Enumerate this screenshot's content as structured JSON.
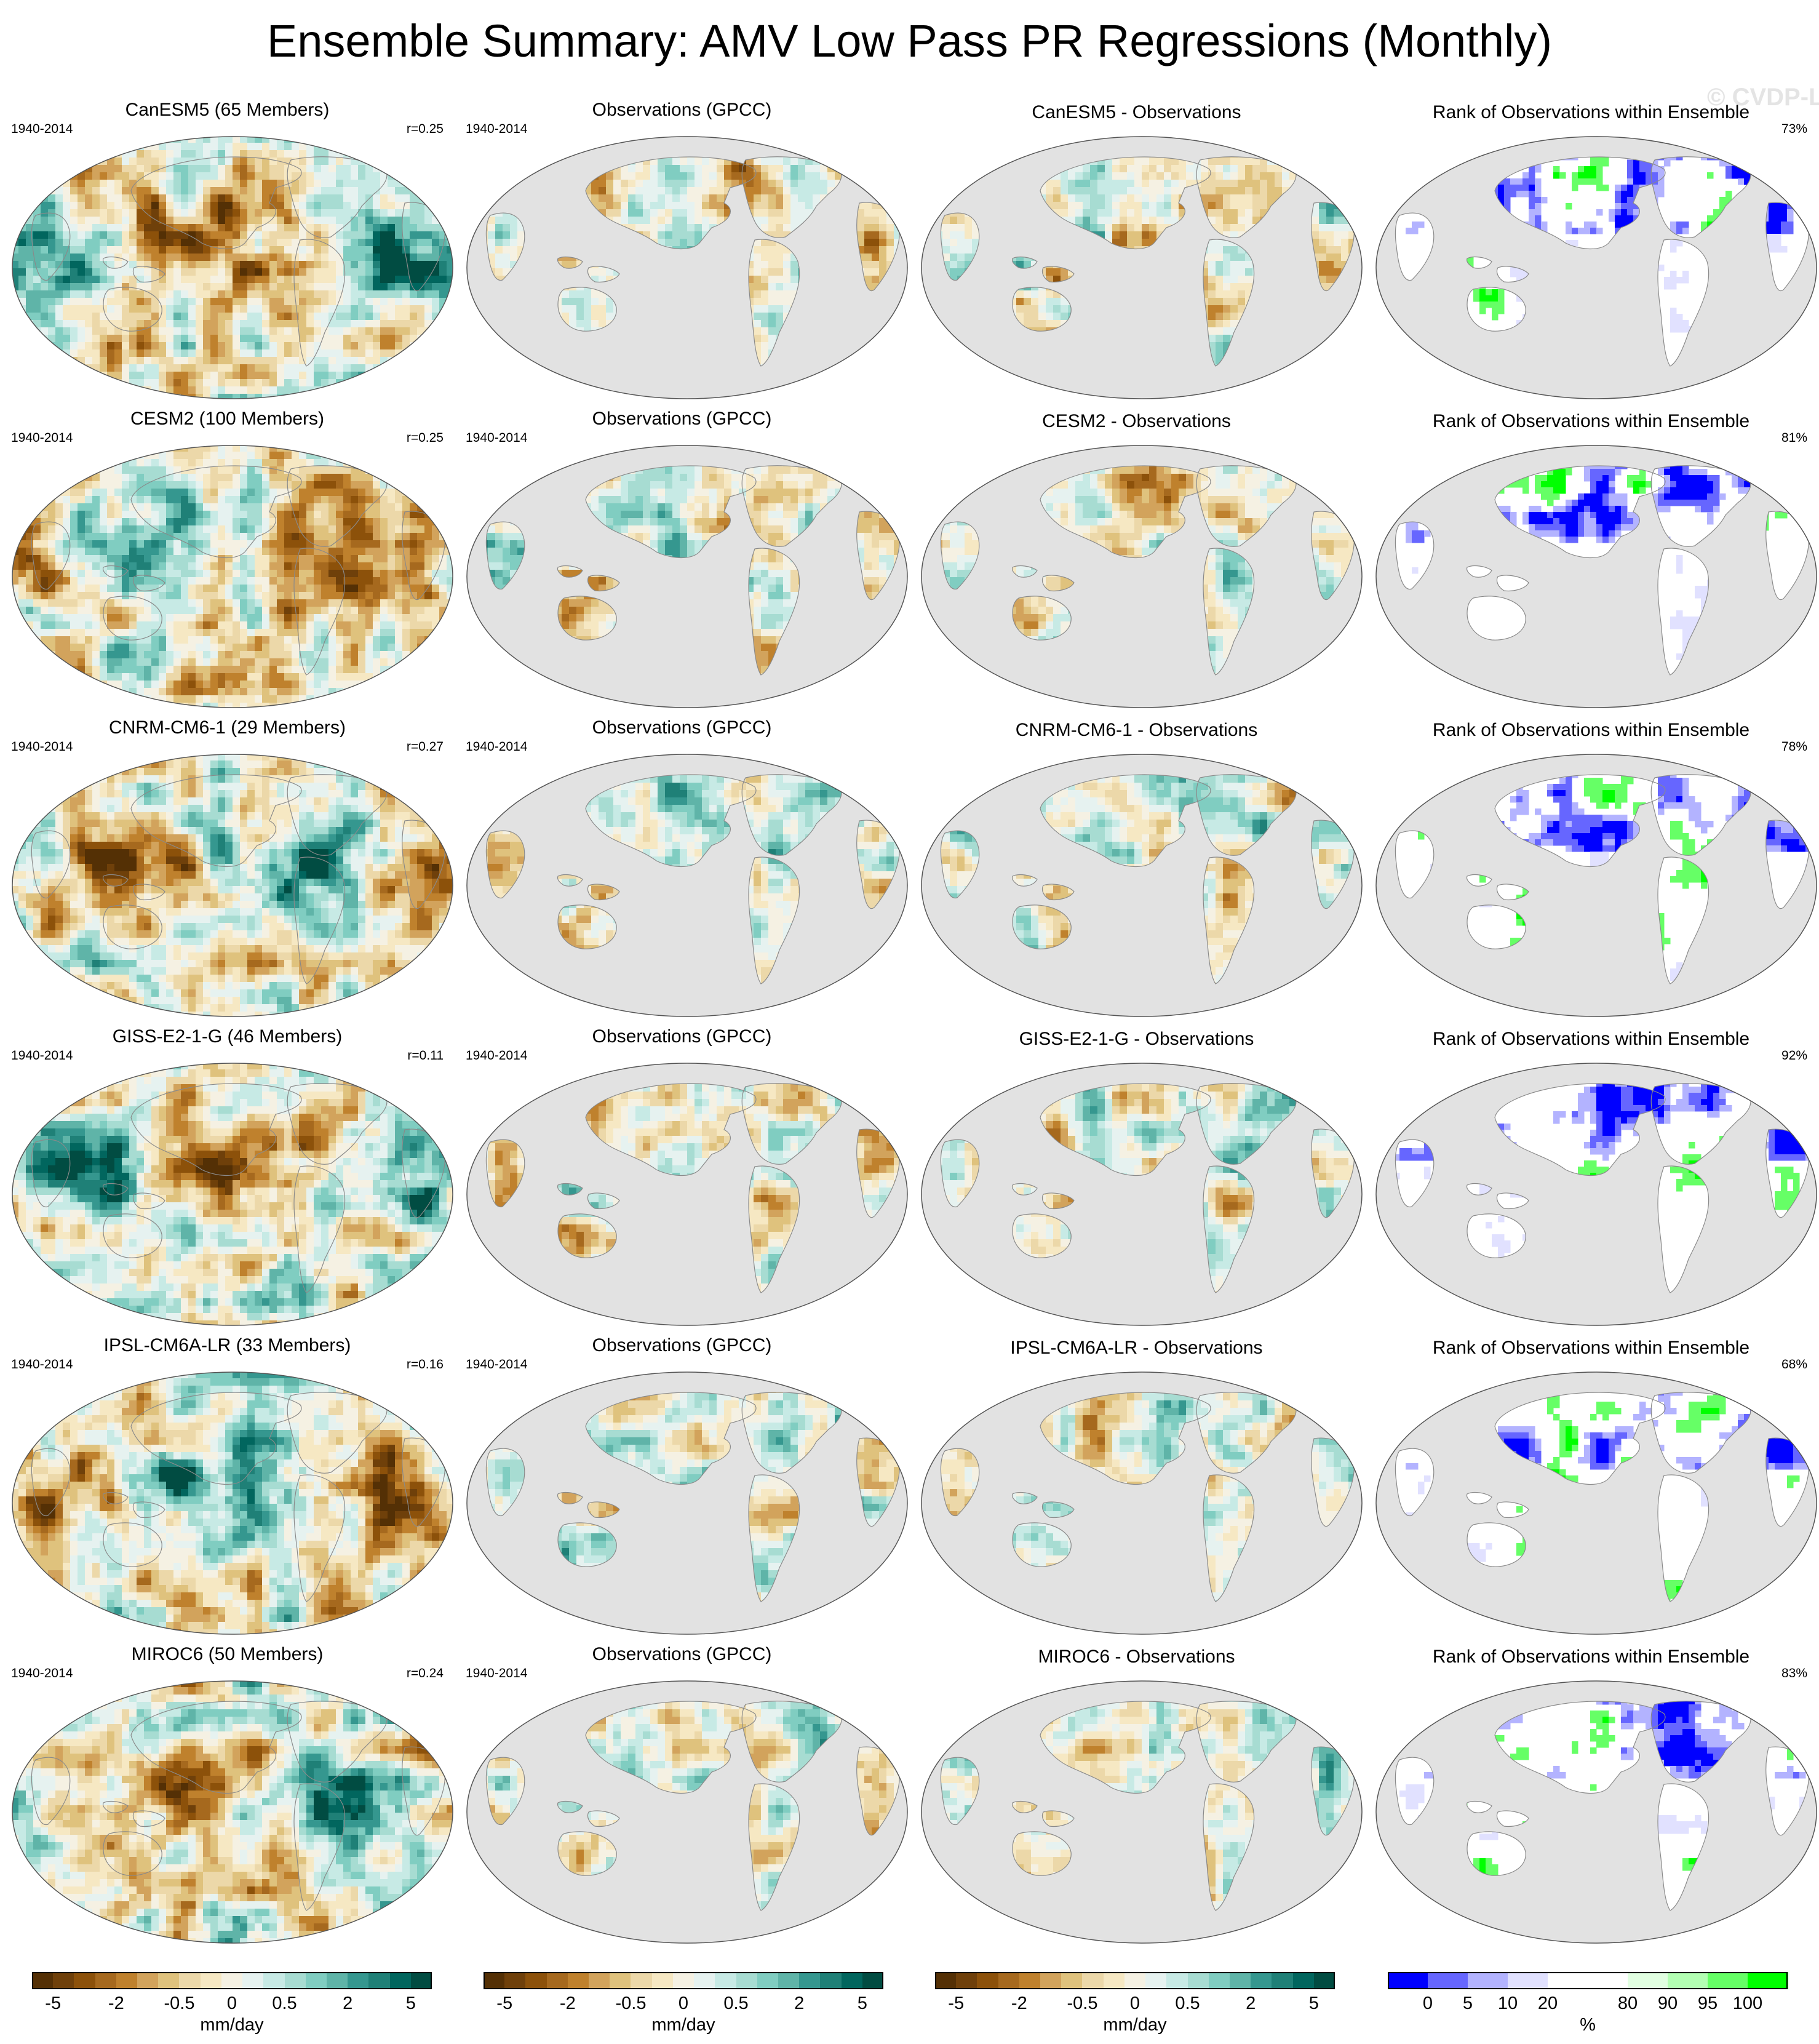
{
  "title": "Ensemble Summary: AMV Low Pass PR Regressions (Monthly)",
  "watermark": "© CVDP-LE",
  "period": "1940-2014",
  "obs_title": "Observations (GPCC)",
  "rank_title": "Rank of Observations within Ensemble",
  "rows": [
    {
      "model_title": "CanESM5 (65 Members)",
      "r": "r=0.25",
      "diff_title": "CanESM5 - Observations",
      "rank_pct": "73%"
    },
    {
      "model_title": "CESM2 (100 Members)",
      "r": "r=0.25",
      "diff_title": "CESM2 - Observations",
      "rank_pct": "81%"
    },
    {
      "model_title": "CNRM-CM6-1 (29 Members)",
      "r": "r=0.27",
      "diff_title": "CNRM-CM6-1 - Observations",
      "rank_pct": "78%"
    },
    {
      "model_title": "GISS-E2-1-G (46 Members)",
      "r": "r=0.11",
      "diff_title": "GISS-E2-1-G - Observations",
      "rank_pct": "92%"
    },
    {
      "model_title": "IPSL-CM6A-LR (33 Members)",
      "r": "r=0.16",
      "diff_title": "IPSL-CM6A-LR - Observations",
      "rank_pct": "68%"
    },
    {
      "model_title": "MIROC6 (50 Members)",
      "r": "r=0.24",
      "diff_title": "MIROC6 - Observations",
      "rank_pct": "83%"
    }
  ],
  "chart_data": {
    "type": "heatmap",
    "colorbars": [
      {
        "unit": "mm/day",
        "tick_labels": [
          "-5",
          "-2",
          "-0.5",
          "0",
          "0.5",
          "2",
          "5"
        ],
        "colors": [
          "#543005",
          "#6f400a",
          "#8c510a",
          "#a6691e",
          "#bf812d",
          "#d2a35c",
          "#dfc27d",
          "#ecd8a9",
          "#f6e8c3",
          "#f5f1e3",
          "#e6f2f0",
          "#c7eae5",
          "#a7dcd2",
          "#80cdc1",
          "#5fb4a8",
          "#35978f",
          "#1f8077",
          "#01665e",
          "#014c42"
        ]
      },
      {
        "unit": "mm/day",
        "tick_labels": [
          "-5",
          "-2",
          "-0.5",
          "0",
          "0.5",
          "2",
          "5"
        ],
        "colors": [
          "#543005",
          "#6f400a",
          "#8c510a",
          "#a6691e",
          "#bf812d",
          "#d2a35c",
          "#dfc27d",
          "#ecd8a9",
          "#f6e8c3",
          "#f5f1e3",
          "#e6f2f0",
          "#c7eae5",
          "#a7dcd2",
          "#80cdc1",
          "#5fb4a8",
          "#35978f",
          "#1f8077",
          "#01665e",
          "#014c42"
        ]
      },
      {
        "unit": "mm/day",
        "tick_labels": [
          "-5",
          "-2",
          "-0.5",
          "0",
          "0.5",
          "2",
          "5"
        ],
        "colors": [
          "#543005",
          "#6f400a",
          "#8c510a",
          "#a6691e",
          "#bf812d",
          "#d2a35c",
          "#dfc27d",
          "#ecd8a9",
          "#f6e8c3",
          "#f5f1e3",
          "#e6f2f0",
          "#c7eae5",
          "#a7dcd2",
          "#80cdc1",
          "#5fb4a8",
          "#35978f",
          "#1f8077",
          "#01665e",
          "#014c42"
        ]
      },
      {
        "unit": "%",
        "tick_labels": [
          "0",
          "5",
          "10",
          "20",
          "80",
          "90",
          "95",
          "100"
        ],
        "colors": [
          "#0000ff",
          "#6666ff",
          "#b3b3ff",
          "#e1e1ff",
          "#ffffff",
          "#ffffff",
          "#e1ffe1",
          "#b3ffb3",
          "#66ff66",
          "#00ff00"
        ]
      }
    ],
    "background_color": "#e2e2e2",
    "land_outline_color": "#8a8a8a"
  }
}
